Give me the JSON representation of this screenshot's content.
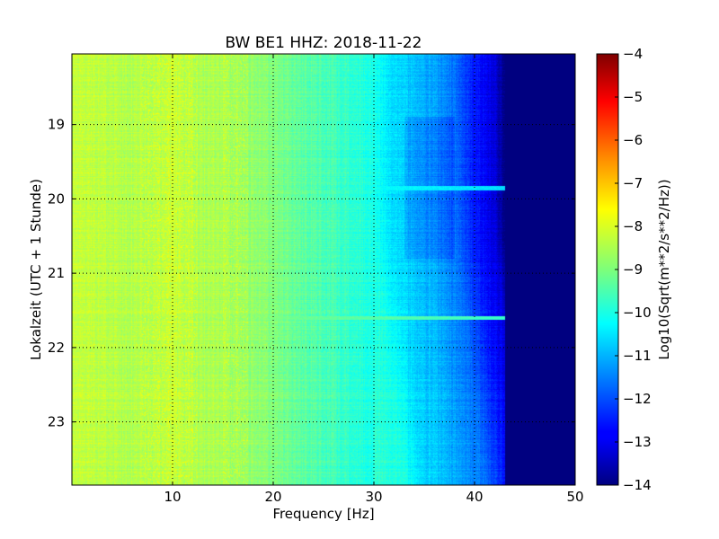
{
  "chart_data": {
    "type": "heatmap",
    "title": "BW BE1 HHZ: 2018-11-22",
    "xlabel": "Frequency [Hz]",
    "ylabel": "Lokalzeit (UTC + 1 Stunde)",
    "xlim": [
      0,
      50
    ],
    "ylim": [
      18.05,
      23.85
    ],
    "y_inverted": true,
    "grid": true,
    "x_ticks": [
      10,
      20,
      30,
      40,
      50
    ],
    "x_tick_labels": [
      "10",
      "20",
      "30",
      "40",
      "50"
    ],
    "y_ticks": [
      19,
      20,
      21,
      22,
      23
    ],
    "y_tick_labels": [
      "19",
      "20",
      "21",
      "22",
      "23"
    ],
    "colormap": "jet",
    "colorbar": {
      "label": "Log10(Sqrt(m**2/s**2/Hz))",
      "range": [
        -14,
        -4
      ],
      "ticks": [
        -4,
        -5,
        -6,
        -7,
        -8,
        -9,
        -10,
        -11,
        -12,
        -13,
        -14
      ],
      "tick_labels": [
        "−4",
        "−5",
        "−6",
        "−7",
        "−8",
        "−9",
        "−10",
        "−11",
        "−12",
        "−13",
        "−14"
      ]
    },
    "spectrum_profile": {
      "frequency_hz": [
        0,
        5,
        10,
        15,
        20,
        25,
        28,
        30,
        32,
        35,
        38,
        40,
        42,
        43,
        50
      ],
      "log10_amplitude": [
        -8.3,
        -8.5,
        -8.4,
        -8.6,
        -9.0,
        -9.5,
        -9.8,
        -10.0,
        -10.6,
        -11.0,
        -11.6,
        -12.5,
        -13.1,
        -14.0,
        -14.0
      ]
    },
    "highlights": [
      {
        "time_h": 19.85,
        "f_end_hz": 44,
        "log10_amplitude": -9.4
      },
      {
        "time_h": 21.6,
        "f_end_hz": 45,
        "log10_amplitude": -8.6
      }
    ]
  }
}
